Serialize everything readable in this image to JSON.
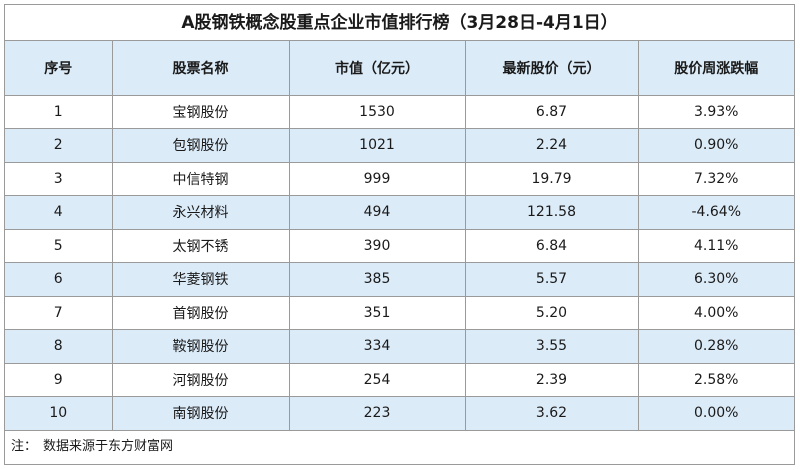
{
  "title": "A股钢铁概念股重点企业市值排行榜（3月28日-4月1日）",
  "headers": [
    "序号",
    "股票名称",
    "市值（亿元）",
    "最新股价（元）",
    "股价周涨跌幅"
  ],
  "rows": [
    [
      "1",
      "宝钢股份",
      "1530",
      "6.87",
      "3.93%"
    ],
    [
      "2",
      "包钢股份",
      "1021",
      "2.24",
      "0.90%"
    ],
    [
      "3",
      "中信特钢",
      "999",
      "19.79",
      "7.32%"
    ],
    [
      "4",
      "永兴材料",
      "494",
      "121.58",
      "-4.64%"
    ],
    [
      "5",
      "太钢不锈",
      "390",
      "6.84",
      "4.11%"
    ],
    [
      "6",
      "华菱钢铁",
      "385",
      "5.57",
      "6.30%"
    ],
    [
      "7",
      "首钢股份",
      "351",
      "5.20",
      "4.00%"
    ],
    [
      "8",
      "鞍钢股份",
      "334",
      "3.55",
      "0.28%"
    ],
    [
      "9",
      "河钢股份",
      "254",
      "2.39",
      "2.58%"
    ],
    [
      "10",
      "南钢股份",
      "223",
      "3.62",
      "0.00%"
    ]
  ],
  "note": {
    "prefix": "注：",
    "text": "数据来源于东方财富网"
  },
  "colors": {
    "header_bg": "#dcebf8",
    "alt_row_bg": "#dcebf8",
    "border": "#9a9a9a"
  }
}
